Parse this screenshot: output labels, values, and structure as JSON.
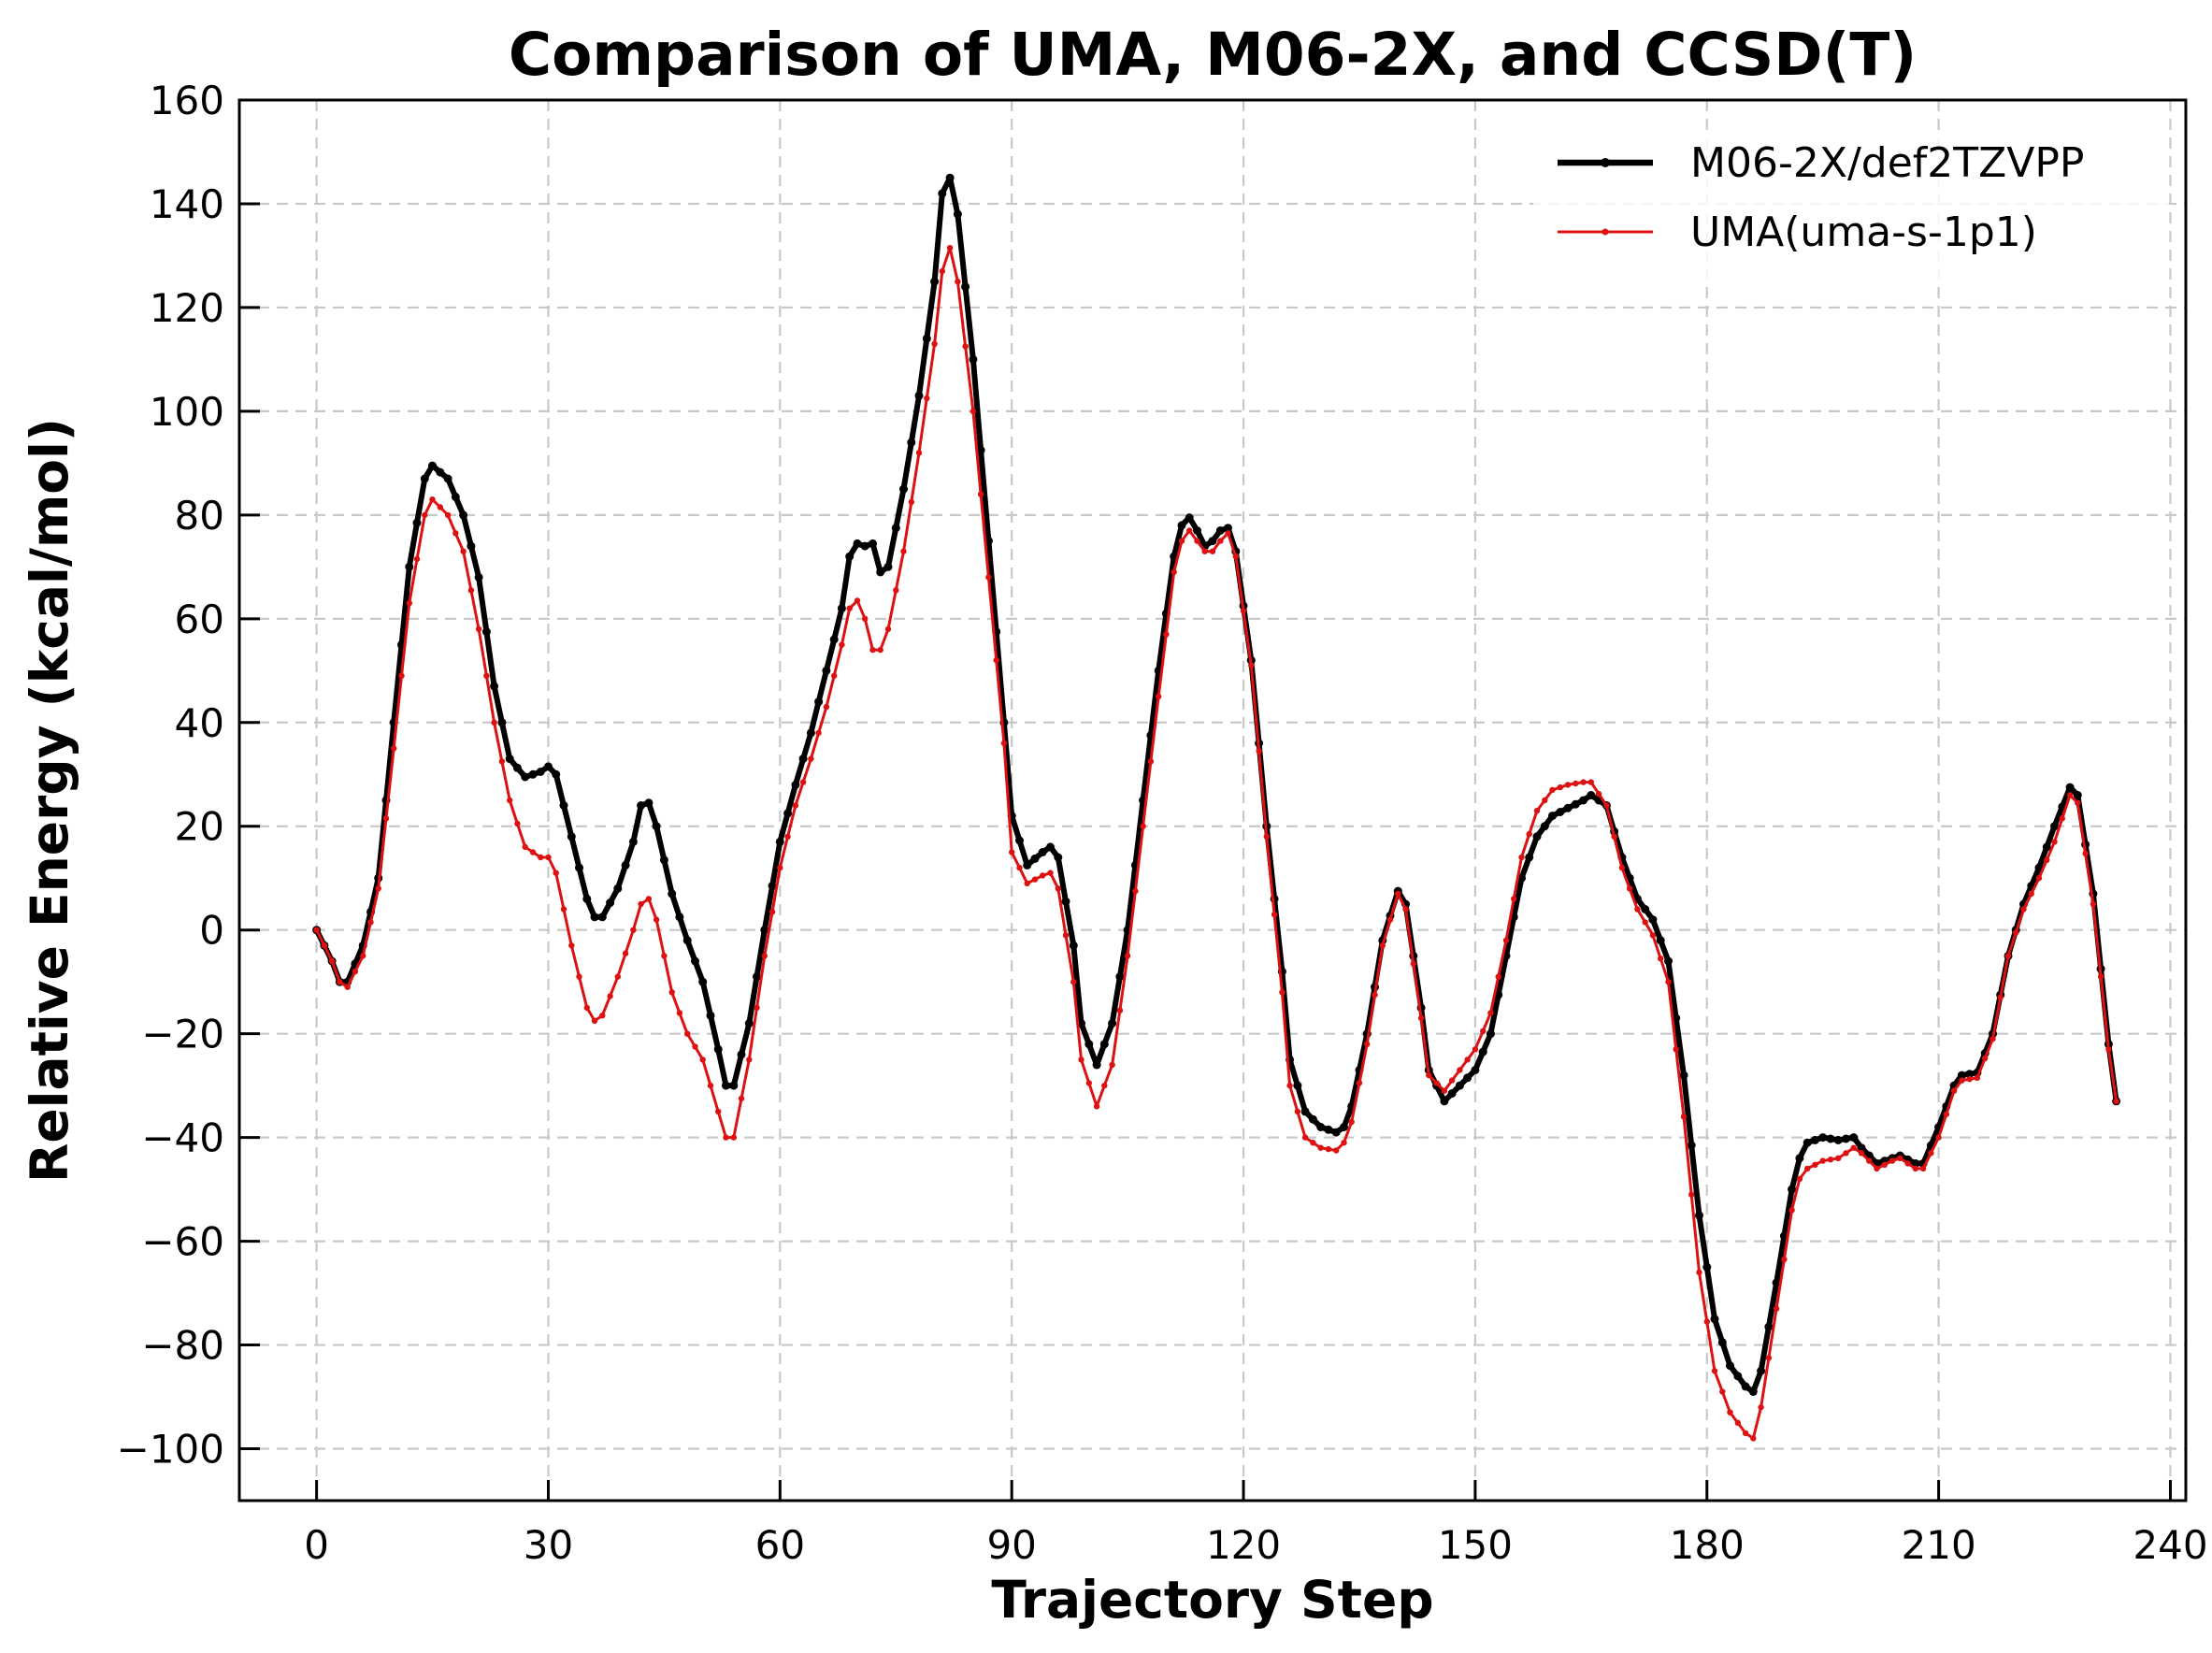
{
  "chart_data": {
    "type": "line",
    "title": "Comparison of UMA, M06-2X, and CCSD(T)",
    "xlabel": "Trajectory Step",
    "ylabel": "Relative Energy (kcal/mol)",
    "xlim": [
      -10,
      242
    ],
    "ylim": [
      -110,
      160
    ],
    "xticks": [
      0,
      30,
      60,
      90,
      120,
      150,
      180,
      210,
      240
    ],
    "yticks": [
      -100,
      -80,
      -60,
      -40,
      -20,
      0,
      20,
      40,
      60,
      80,
      100,
      120,
      140,
      160
    ],
    "xtick_labels": [
      "0",
      "30",
      "60",
      "90",
      "120",
      "150",
      "180",
      "210",
      "240"
    ],
    "ytick_labels": [
      "−100",
      "−80",
      "−60",
      "−40",
      "−20",
      "0",
      "20",
      "40",
      "60",
      "80",
      "100",
      "120",
      "140",
      "160"
    ],
    "grid": true,
    "legend_position": "top-right",
    "series": [
      {
        "name": "M06-2X/def2TZVPP",
        "color": "#000000",
        "anchors": [
          [
            0,
            0
          ],
          [
            2,
            -6
          ],
          [
            3,
            -10
          ],
          [
            4,
            -10
          ],
          [
            6,
            -3
          ],
          [
            8,
            10
          ],
          [
            10,
            40
          ],
          [
            12,
            70
          ],
          [
            14,
            87
          ],
          [
            15,
            89.5
          ],
          [
            17,
            87
          ],
          [
            19,
            80
          ],
          [
            21,
            68
          ],
          [
            23,
            47
          ],
          [
            25,
            33
          ],
          [
            27,
            29.5
          ],
          [
            29,
            30.5
          ],
          [
            30,
            31.5
          ],
          [
            31,
            30
          ],
          [
            33,
            18
          ],
          [
            35,
            6
          ],
          [
            36,
            2.5
          ],
          [
            37,
            2.5
          ],
          [
            39,
            8
          ],
          [
            41,
            17
          ],
          [
            42,
            24
          ],
          [
            43,
            24.5
          ],
          [
            44,
            20
          ],
          [
            46,
            7
          ],
          [
            48,
            -2
          ],
          [
            50,
            -10
          ],
          [
            52,
            -23
          ],
          [
            53,
            -30
          ],
          [
            54,
            -30
          ],
          [
            56,
            -18
          ],
          [
            58,
            0
          ],
          [
            60,
            17
          ],
          [
            62,
            28
          ],
          [
            64,
            38
          ],
          [
            66,
            50
          ],
          [
            68,
            62
          ],
          [
            69,
            72
          ],
          [
            70,
            74.5
          ],
          [
            71,
            74
          ],
          [
            72,
            74.5
          ],
          [
            73,
            69
          ],
          [
            74,
            70
          ],
          [
            76,
            85
          ],
          [
            78,
            103
          ],
          [
            80,
            125
          ],
          [
            81,
            142
          ],
          [
            82,
            145
          ],
          [
            83,
            138
          ],
          [
            85,
            110
          ],
          [
            87,
            75
          ],
          [
            89,
            40
          ],
          [
            90,
            22
          ],
          [
            92,
            12.5
          ],
          [
            94,
            15
          ],
          [
            95,
            16
          ],
          [
            96,
            14
          ],
          [
            98,
            -3
          ],
          [
            99,
            -18
          ],
          [
            101,
            -26
          ],
          [
            103,
            -18
          ],
          [
            105,
            0
          ],
          [
            107,
            25
          ],
          [
            109,
            50
          ],
          [
            111,
            72
          ],
          [
            112,
            78
          ],
          [
            113,
            79.5
          ],
          [
            114,
            77
          ],
          [
            115,
            74
          ],
          [
            116,
            75
          ],
          [
            117,
            77
          ],
          [
            118,
            77.5
          ],
          [
            119,
            73
          ],
          [
            121,
            52
          ],
          [
            123,
            20
          ],
          [
            125,
            -8
          ],
          [
            126,
            -25
          ],
          [
            128,
            -35
          ],
          [
            130,
            -38
          ],
          [
            132,
            -39
          ],
          [
            133,
            -38
          ],
          [
            134,
            -34
          ],
          [
            136,
            -20
          ],
          [
            138,
            -2
          ],
          [
            140,
            7.5
          ],
          [
            141,
            5
          ],
          [
            143,
            -15
          ],
          [
            144,
            -27
          ],
          [
            146,
            -33
          ],
          [
            148,
            -30
          ],
          [
            150,
            -27
          ],
          [
            152,
            -20
          ],
          [
            154,
            -5
          ],
          [
            156,
            10
          ],
          [
            158,
            18
          ],
          [
            160,
            22
          ],
          [
            162,
            23.5
          ],
          [
            164,
            25
          ],
          [
            165,
            26
          ],
          [
            167,
            24
          ],
          [
            169,
            14
          ],
          [
            171,
            6
          ],
          [
            173,
            2
          ],
          [
            175,
            -6
          ],
          [
            177,
            -28
          ],
          [
            179,
            -55
          ],
          [
            181,
            -75
          ],
          [
            183,
            -84
          ],
          [
            185,
            -88
          ],
          [
            186,
            -89
          ],
          [
            187,
            -85
          ],
          [
            189,
            -68
          ],
          [
            191,
            -50
          ],
          [
            192,
            -44
          ],
          [
            193,
            -41
          ],
          [
            195,
            -40
          ],
          [
            197,
            -40.5
          ],
          [
            199,
            -40
          ],
          [
            200,
            -42
          ],
          [
            202,
            -45
          ],
          [
            204,
            -44
          ],
          [
            205,
            -43.5
          ],
          [
            207,
            -45
          ],
          [
            208,
            -45
          ],
          [
            210,
            -38
          ],
          [
            212,
            -30
          ],
          [
            213,
            -28
          ],
          [
            215,
            -27.5
          ],
          [
            217,
            -20
          ],
          [
            219,
            -5
          ],
          [
            221,
            5
          ],
          [
            223,
            12
          ],
          [
            225,
            20
          ],
          [
            227,
            27.5
          ],
          [
            228,
            26
          ],
          [
            230,
            7
          ],
          [
            232,
            -22
          ],
          [
            233,
            -33
          ]
        ]
      },
      {
        "name": "UMA(uma-s-1p1)",
        "color": "#dd1111",
        "anchors": [
          [
            0,
            0
          ],
          [
            2,
            -6
          ],
          [
            3,
            -10
          ],
          [
            4,
            -11
          ],
          [
            6,
            -5
          ],
          [
            8,
            8
          ],
          [
            10,
            35
          ],
          [
            12,
            63
          ],
          [
            14,
            80
          ],
          [
            15,
            83
          ],
          [
            17,
            80
          ],
          [
            19,
            73
          ],
          [
            21,
            58
          ],
          [
            23,
            40
          ],
          [
            25,
            25
          ],
          [
            27,
            16
          ],
          [
            29,
            14
          ],
          [
            30,
            14
          ],
          [
            31,
            11
          ],
          [
            33,
            -3
          ],
          [
            35,
            -15
          ],
          [
            36,
            -17.5
          ],
          [
            37,
            -16.5
          ],
          [
            39,
            -9
          ],
          [
            41,
            0
          ],
          [
            42,
            5
          ],
          [
            43,
            6
          ],
          [
            44,
            2
          ],
          [
            46,
            -12
          ],
          [
            48,
            -20
          ],
          [
            50,
            -25
          ],
          [
            52,
            -35
          ],
          [
            53,
            -40
          ],
          [
            54,
            -40
          ],
          [
            56,
            -25
          ],
          [
            58,
            -5
          ],
          [
            60,
            12
          ],
          [
            62,
            24
          ],
          [
            64,
            33
          ],
          [
            66,
            43
          ],
          [
            68,
            55
          ],
          [
            69,
            62
          ],
          [
            70,
            63.5
          ],
          [
            71,
            60
          ],
          [
            72,
            54
          ],
          [
            73,
            54
          ],
          [
            74,
            58
          ],
          [
            76,
            73
          ],
          [
            78,
            92
          ],
          [
            80,
            113
          ],
          [
            81,
            127
          ],
          [
            82,
            131.5
          ],
          [
            83,
            125
          ],
          [
            85,
            100
          ],
          [
            87,
            68
          ],
          [
            89,
            36
          ],
          [
            90,
            15
          ],
          [
            92,
            9
          ],
          [
            94,
            10.5
          ],
          [
            95,
            11
          ],
          [
            96,
            8
          ],
          [
            98,
            -10
          ],
          [
            99,
            -25
          ],
          [
            101,
            -34
          ],
          [
            103,
            -26
          ],
          [
            105,
            -5
          ],
          [
            107,
            20
          ],
          [
            109,
            45
          ],
          [
            111,
            69
          ],
          [
            112,
            75
          ],
          [
            113,
            77
          ],
          [
            114,
            75
          ],
          [
            115,
            73
          ],
          [
            116,
            73
          ],
          [
            117,
            75
          ],
          [
            118,
            76.5
          ],
          [
            119,
            72
          ],
          [
            121,
            51
          ],
          [
            123,
            18
          ],
          [
            125,
            -12
          ],
          [
            126,
            -30
          ],
          [
            128,
            -40
          ],
          [
            130,
            -42
          ],
          [
            132,
            -42.5
          ],
          [
            133,
            -41
          ],
          [
            134,
            -37
          ],
          [
            136,
            -22
          ],
          [
            138,
            -3
          ],
          [
            140,
            7
          ],
          [
            141,
            4
          ],
          [
            143,
            -17
          ],
          [
            144,
            -28
          ],
          [
            146,
            -31
          ],
          [
            148,
            -27
          ],
          [
            150,
            -23
          ],
          [
            152,
            -16
          ],
          [
            154,
            -2
          ],
          [
            156,
            14
          ],
          [
            158,
            23
          ],
          [
            160,
            27
          ],
          [
            162,
            28
          ],
          [
            164,
            28.5
          ],
          [
            165,
            28.5
          ],
          [
            167,
            24
          ],
          [
            169,
            12
          ],
          [
            171,
            4
          ],
          [
            173,
            -1
          ],
          [
            175,
            -10
          ],
          [
            177,
            -36
          ],
          [
            179,
            -66
          ],
          [
            181,
            -85
          ],
          [
            183,
            -93
          ],
          [
            185,
            -97
          ],
          [
            186,
            -98
          ],
          [
            187,
            -92
          ],
          [
            189,
            -73
          ],
          [
            191,
            -54
          ],
          [
            192,
            -48
          ],
          [
            193,
            -46
          ],
          [
            195,
            -44.5
          ],
          [
            197,
            -44
          ],
          [
            199,
            -42
          ],
          [
            200,
            -43
          ],
          [
            202,
            -46
          ],
          [
            204,
            -44.5
          ],
          [
            205,
            -44
          ],
          [
            207,
            -46
          ],
          [
            208,
            -46
          ],
          [
            210,
            -40
          ],
          [
            212,
            -31
          ],
          [
            213,
            -29
          ],
          [
            215,
            -28.5
          ],
          [
            217,
            -21
          ],
          [
            219,
            -5
          ],
          [
            221,
            4
          ],
          [
            223,
            10
          ],
          [
            225,
            17
          ],
          [
            227,
            26
          ],
          [
            228,
            24.5
          ],
          [
            230,
            5
          ],
          [
            232,
            -23
          ],
          [
            233,
            -33
          ]
        ]
      }
    ]
  }
}
